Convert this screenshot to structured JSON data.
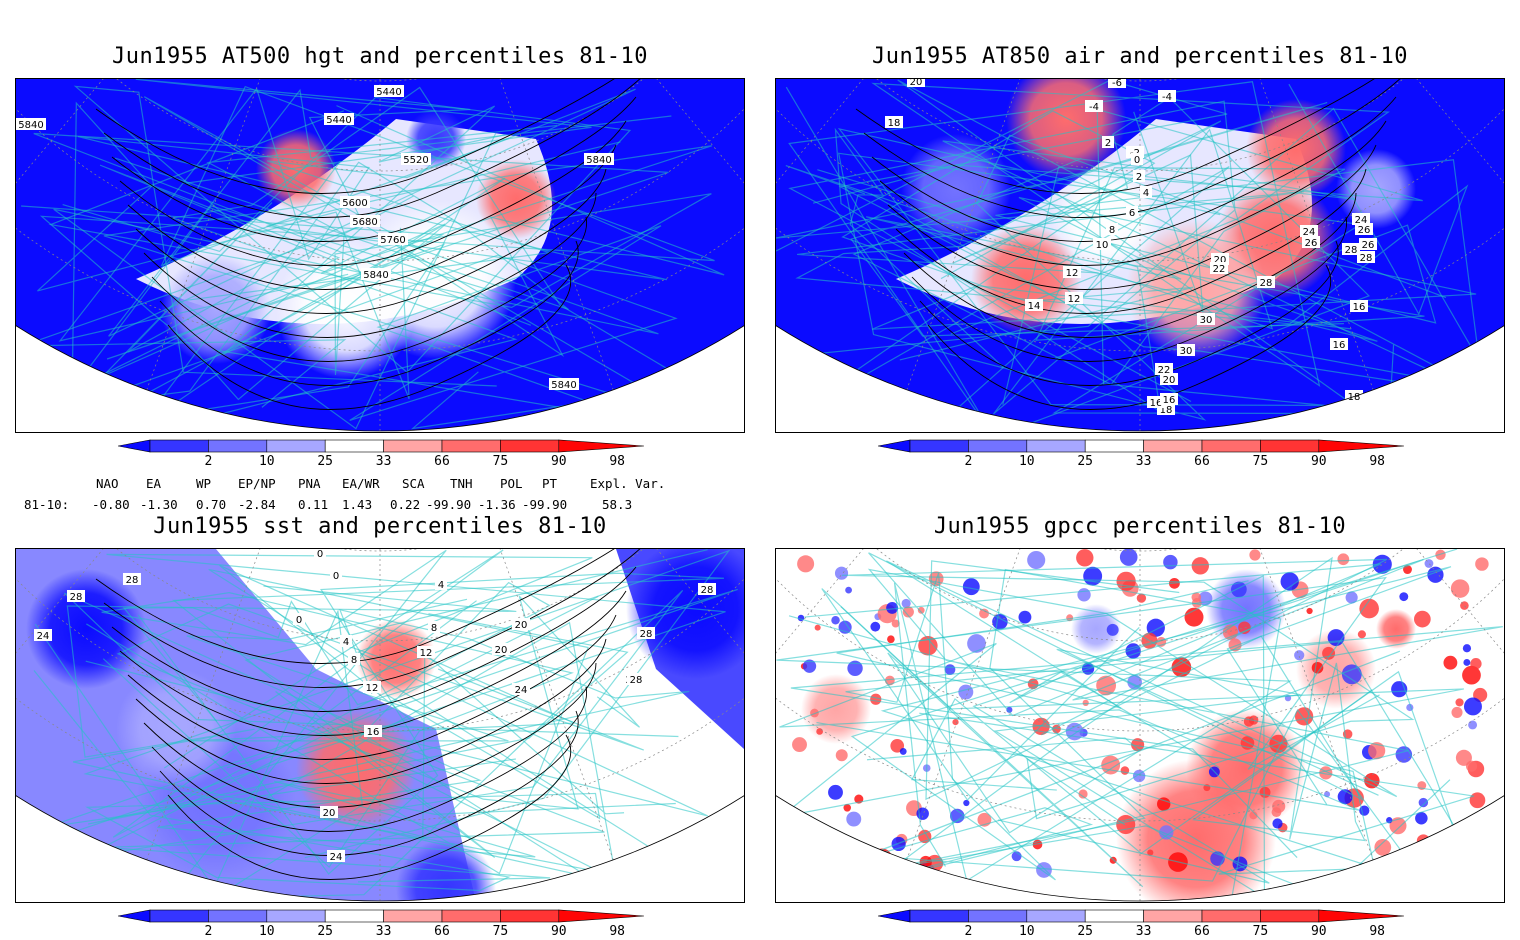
{
  "panels": [
    {
      "title": "Jun1955 AT500 hgt and percentiles 81-10",
      "contour_labels": [
        "5440",
        "5440",
        "5520",
        "5600",
        "5680",
        "5760",
        "5840",
        "5840",
        "5840",
        "5840"
      ]
    },
    {
      "title": "Jun1955 AT850 air and percentiles 81-10",
      "contour_labels": [
        "20",
        "18",
        "-6",
        "-4",
        "-4",
        "2",
        "-2",
        "0",
        "2",
        "4",
        "6",
        "8",
        "10",
        "12",
        "12",
        "14",
        "16",
        "16",
        "18",
        "18",
        "16",
        "20",
        "22",
        "24",
        "26",
        "28",
        "30",
        "30",
        "28",
        "26",
        "26",
        "24",
        "28",
        "22",
        "20",
        "16"
      ]
    },
    {
      "title": "Jun1955 sst and percentiles 81-10",
      "contour_labels": [
        "28",
        "24",
        "28",
        "0",
        "0",
        "4",
        "8",
        "12",
        "16",
        "20",
        "24",
        "28",
        "28",
        "28",
        "28",
        "20",
        "20",
        "24",
        "12",
        "8",
        "4",
        "0"
      ]
    },
    {
      "title": "Jun1955 gpcc percentiles 81-10",
      "contour_labels": []
    }
  ],
  "colorbar": {
    "labels": [
      "2",
      "10",
      "25",
      "33",
      "66",
      "75",
      "90",
      "98"
    ],
    "colors": [
      "#0b0bff",
      "#3535ff",
      "#7373ff",
      "#a7a7ff",
      "#ffffff",
      "#ffa5a5",
      "#ff6c6c",
      "#ff3434",
      "#ff0505"
    ]
  },
  "indices": {
    "headers": [
      "NAO",
      "EA",
      "WP",
      "EP/NP",
      "PNA",
      "EA/WR",
      "SCA",
      "TNH",
      "POL",
      "PT",
      "Expl. Var."
    ],
    "row_label": "81-10:",
    "values": [
      "-0.80",
      "-1.30",
      "0.70",
      "-2.84",
      "0.11",
      "1.43",
      "0.22",
      "-99.90",
      "-1.36",
      "-99.90",
      "58.3"
    ]
  }
}
